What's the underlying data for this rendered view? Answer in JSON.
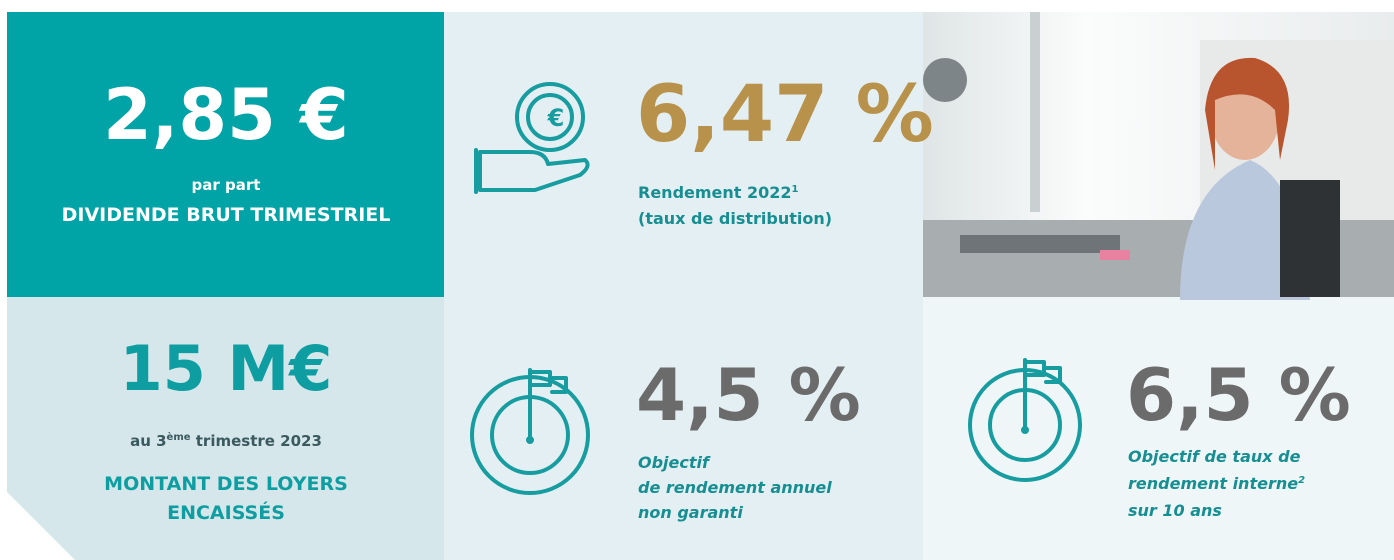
{
  "dividend": {
    "value": "2,85 €",
    "unit": "par part",
    "label": "DIVIDENDE BRUT TRIMESTRIEL"
  },
  "rents": {
    "value": "15 M€",
    "period": {
      "before": "au 3",
      "sup": "ème",
      "after": " trimestre 2023"
    },
    "label": [
      "MONTANT DES LOYERS",
      "ENCAISSÉS"
    ]
  },
  "yield": {
    "value": "6,47 %",
    "label": [
      {
        "text": "Rendement 2022",
        "sup": "1"
      },
      {
        "text": "(taux de distribution)"
      }
    ]
  },
  "target_yield": {
    "value": "4,5 %",
    "label": [
      "Objectif",
      "de rendement annuel",
      "non garanti"
    ]
  },
  "target_irr": {
    "value": "6,5 %",
    "label": [
      {
        "text": "Objectif de taux de"
      },
      {
        "text": "rendement interne",
        "sup": "2"
      },
      {
        "text": "sur 10 ans"
      }
    ]
  }
}
